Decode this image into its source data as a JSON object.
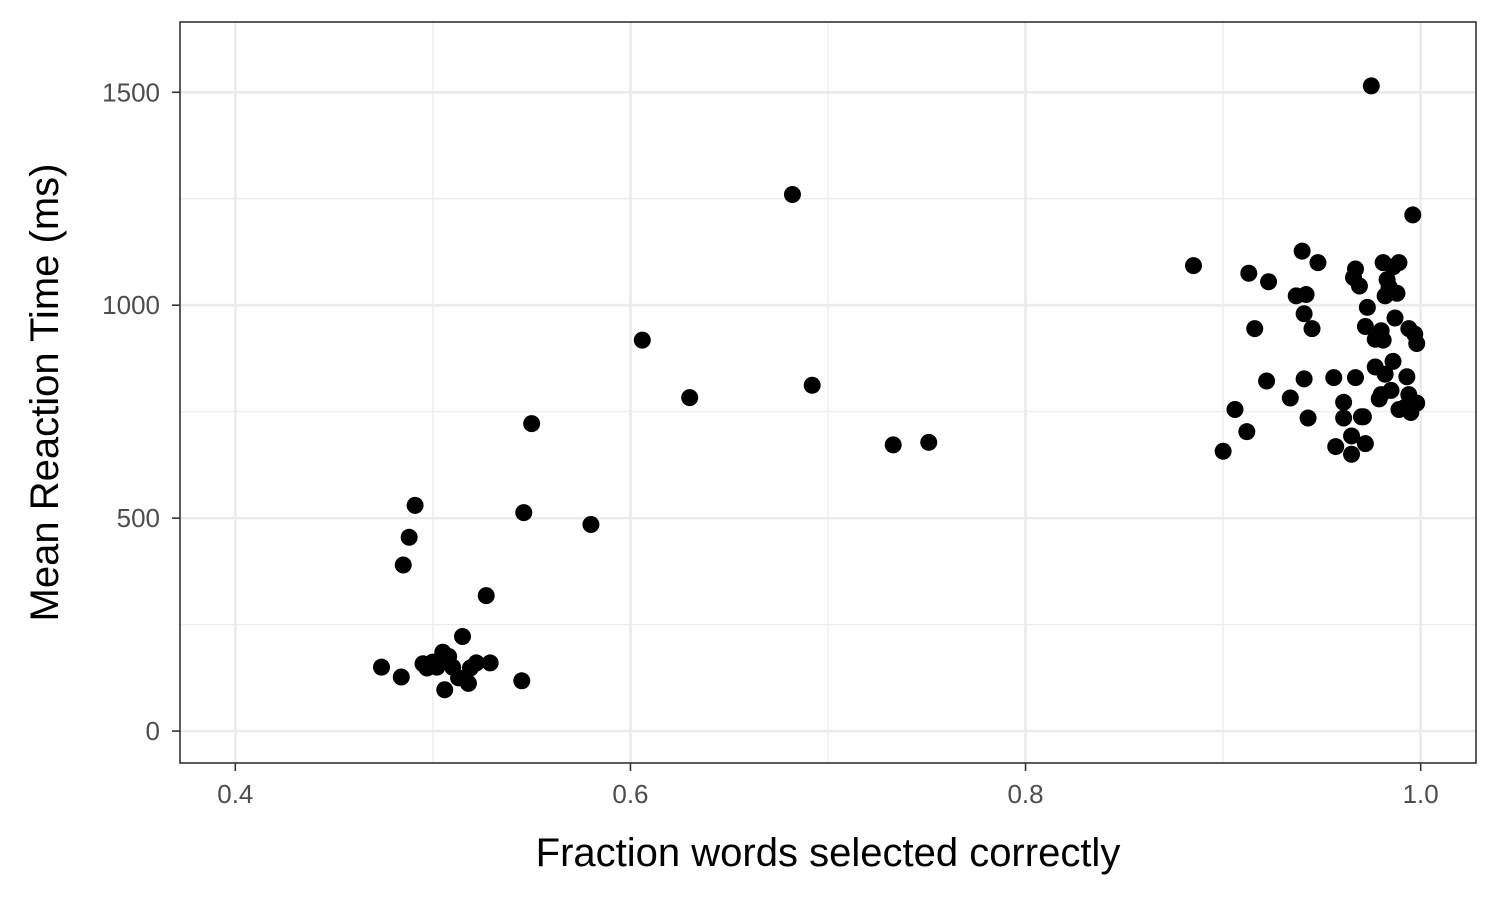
{
  "chart_data": {
    "type": "scatter",
    "title": "",
    "xlabel": "Fraction words selected correctly",
    "ylabel": "Mean Reaction Time (ms)",
    "xlim": [
      0.372,
      1.028
    ],
    "ylim": [
      -75,
      1665
    ],
    "x_ticks": [
      0.4,
      0.6,
      0.8,
      1.0
    ],
    "x_tick_labels": [
      "0.4",
      "0.6",
      "0.8",
      "1.0"
    ],
    "y_ticks": [
      0,
      500,
      1000,
      1500
    ],
    "y_tick_labels": [
      "0",
      "500",
      "1000",
      "1500"
    ],
    "x_minor_ticks": [
      0.5,
      0.7,
      0.9
    ],
    "y_minor_ticks": [
      250,
      750,
      1250
    ],
    "grid": true,
    "legend": "none",
    "theme": "bw",
    "colors": {
      "point": "#000000",
      "grid": "#ebebeb",
      "panel_border": "#333333"
    },
    "points": [
      [
        0.474,
        150
      ],
      [
        0.484,
        127
      ],
      [
        0.485,
        390
      ],
      [
        0.488,
        455
      ],
      [
        0.491,
        530
      ],
      [
        0.495,
        158
      ],
      [
        0.497,
        148
      ],
      [
        0.5,
        162
      ],
      [
        0.502,
        150
      ],
      [
        0.505,
        185
      ],
      [
        0.506,
        97
      ],
      [
        0.508,
        175
      ],
      [
        0.51,
        150
      ],
      [
        0.513,
        125
      ],
      [
        0.515,
        222
      ],
      [
        0.518,
        112
      ],
      [
        0.519,
        148
      ],
      [
        0.522,
        160
      ],
      [
        0.527,
        318
      ],
      [
        0.529,
        160
      ],
      [
        0.545,
        118
      ],
      [
        0.546,
        513
      ],
      [
        0.55,
        722
      ],
      [
        0.58,
        485
      ],
      [
        0.606,
        918
      ],
      [
        0.63,
        783
      ],
      [
        0.682,
        1260
      ],
      [
        0.692,
        812
      ],
      [
        0.733,
        672
      ],
      [
        0.751,
        678
      ],
      [
        0.885,
        1093
      ],
      [
        0.9,
        657
      ],
      [
        0.906,
        755
      ],
      [
        0.912,
        703
      ],
      [
        0.913,
        1075
      ],
      [
        0.916,
        945
      ],
      [
        0.922,
        822
      ],
      [
        0.923,
        1055
      ],
      [
        0.934,
        782
      ],
      [
        0.937,
        1022
      ],
      [
        0.94,
        1127
      ],
      [
        0.941,
        827
      ],
      [
        0.941,
        980
      ],
      [
        0.942,
        1025
      ],
      [
        0.943,
        735
      ],
      [
        0.945,
        945
      ],
      [
        0.948,
        1100
      ],
      [
        0.956,
        830
      ],
      [
        0.957,
        668
      ],
      [
        0.961,
        772
      ],
      [
        0.961,
        735
      ],
      [
        0.965,
        693
      ],
      [
        0.965,
        650
      ],
      [
        0.966,
        1065
      ],
      [
        0.967,
        830
      ],
      [
        0.967,
        1085
      ],
      [
        0.969,
        1045
      ],
      [
        0.97,
        738
      ],
      [
        0.971,
        738
      ],
      [
        0.972,
        675
      ],
      [
        0.972,
        950
      ],
      [
        0.973,
        995
      ],
      [
        0.975,
        1515
      ],
      [
        0.977,
        920
      ],
      [
        0.977,
        855
      ],
      [
        0.979,
        780
      ],
      [
        0.98,
        790
      ],
      [
        0.98,
        940
      ],
      [
        0.981,
        1100
      ],
      [
        0.981,
        918
      ],
      [
        0.982,
        838
      ],
      [
        0.982,
        1022
      ],
      [
        0.983,
        1060
      ],
      [
        0.984,
        1043
      ],
      [
        0.985,
        800
      ],
      [
        0.986,
        868
      ],
      [
        0.986,
        1090
      ],
      [
        0.987,
        970
      ],
      [
        0.988,
        1028
      ],
      [
        0.989,
        755
      ],
      [
        0.989,
        1100
      ],
      [
        0.992,
        760
      ],
      [
        0.993,
        832
      ],
      [
        0.994,
        790
      ],
      [
        0.994,
        945
      ],
      [
        0.995,
        748
      ],
      [
        0.996,
        1212
      ],
      [
        0.997,
        932
      ],
      [
        0.998,
        770
      ],
      [
        0.998,
        910
      ]
    ]
  }
}
